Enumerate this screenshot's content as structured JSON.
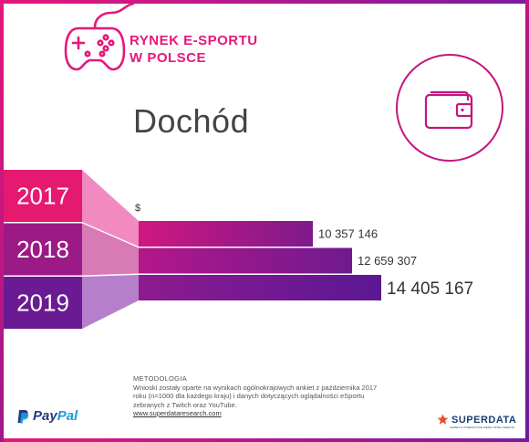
{
  "header": {
    "title_line1": "RYNEK E-SPORTU",
    "title_line2": "W POLSCE"
  },
  "icons": {
    "header": "gamepad-icon",
    "topic": "wallet-icon",
    "sponsor": "paypal-logo",
    "source": "superdata-star-icon"
  },
  "colors": {
    "accent_pink": "#e6177a",
    "accent_purple": "#6a1b9a",
    "year_2017": "#e4196f",
    "year_2018": "#9c1a86",
    "year_2019": "#6a1a93"
  },
  "chart_data": {
    "type": "bar",
    "orientation": "horizontal",
    "title": "Dochód",
    "unit": "$",
    "categories": [
      "2017",
      "2018",
      "2019"
    ],
    "values": [
      10357146,
      12659307,
      14405167
    ],
    "value_labels": [
      "10 357 146",
      "12 659 307",
      "14 405 167"
    ],
    "xlim": [
      0,
      14405167
    ],
    "grid": false,
    "legend": "none"
  },
  "methodology": {
    "title": "METODOLOGIA",
    "line1": "Wnioski zostały oparte na wynikach ogólnokrajowych ankiet z października 2017",
    "line2": "roku (n=1000 dla każdego kraju) i danych dotyczących oglądalności eSportu",
    "line3": "zebranych z Twitch oraz YouTube.",
    "url": "www.superdataresearch.com"
  },
  "footer": {
    "paypal_a": "Pay",
    "paypal_b": "Pal",
    "superdata": "SUPERDATA",
    "superdata_tagline": "GAMES & INTERACTIVE MEDIA INTELLIGENCE"
  }
}
